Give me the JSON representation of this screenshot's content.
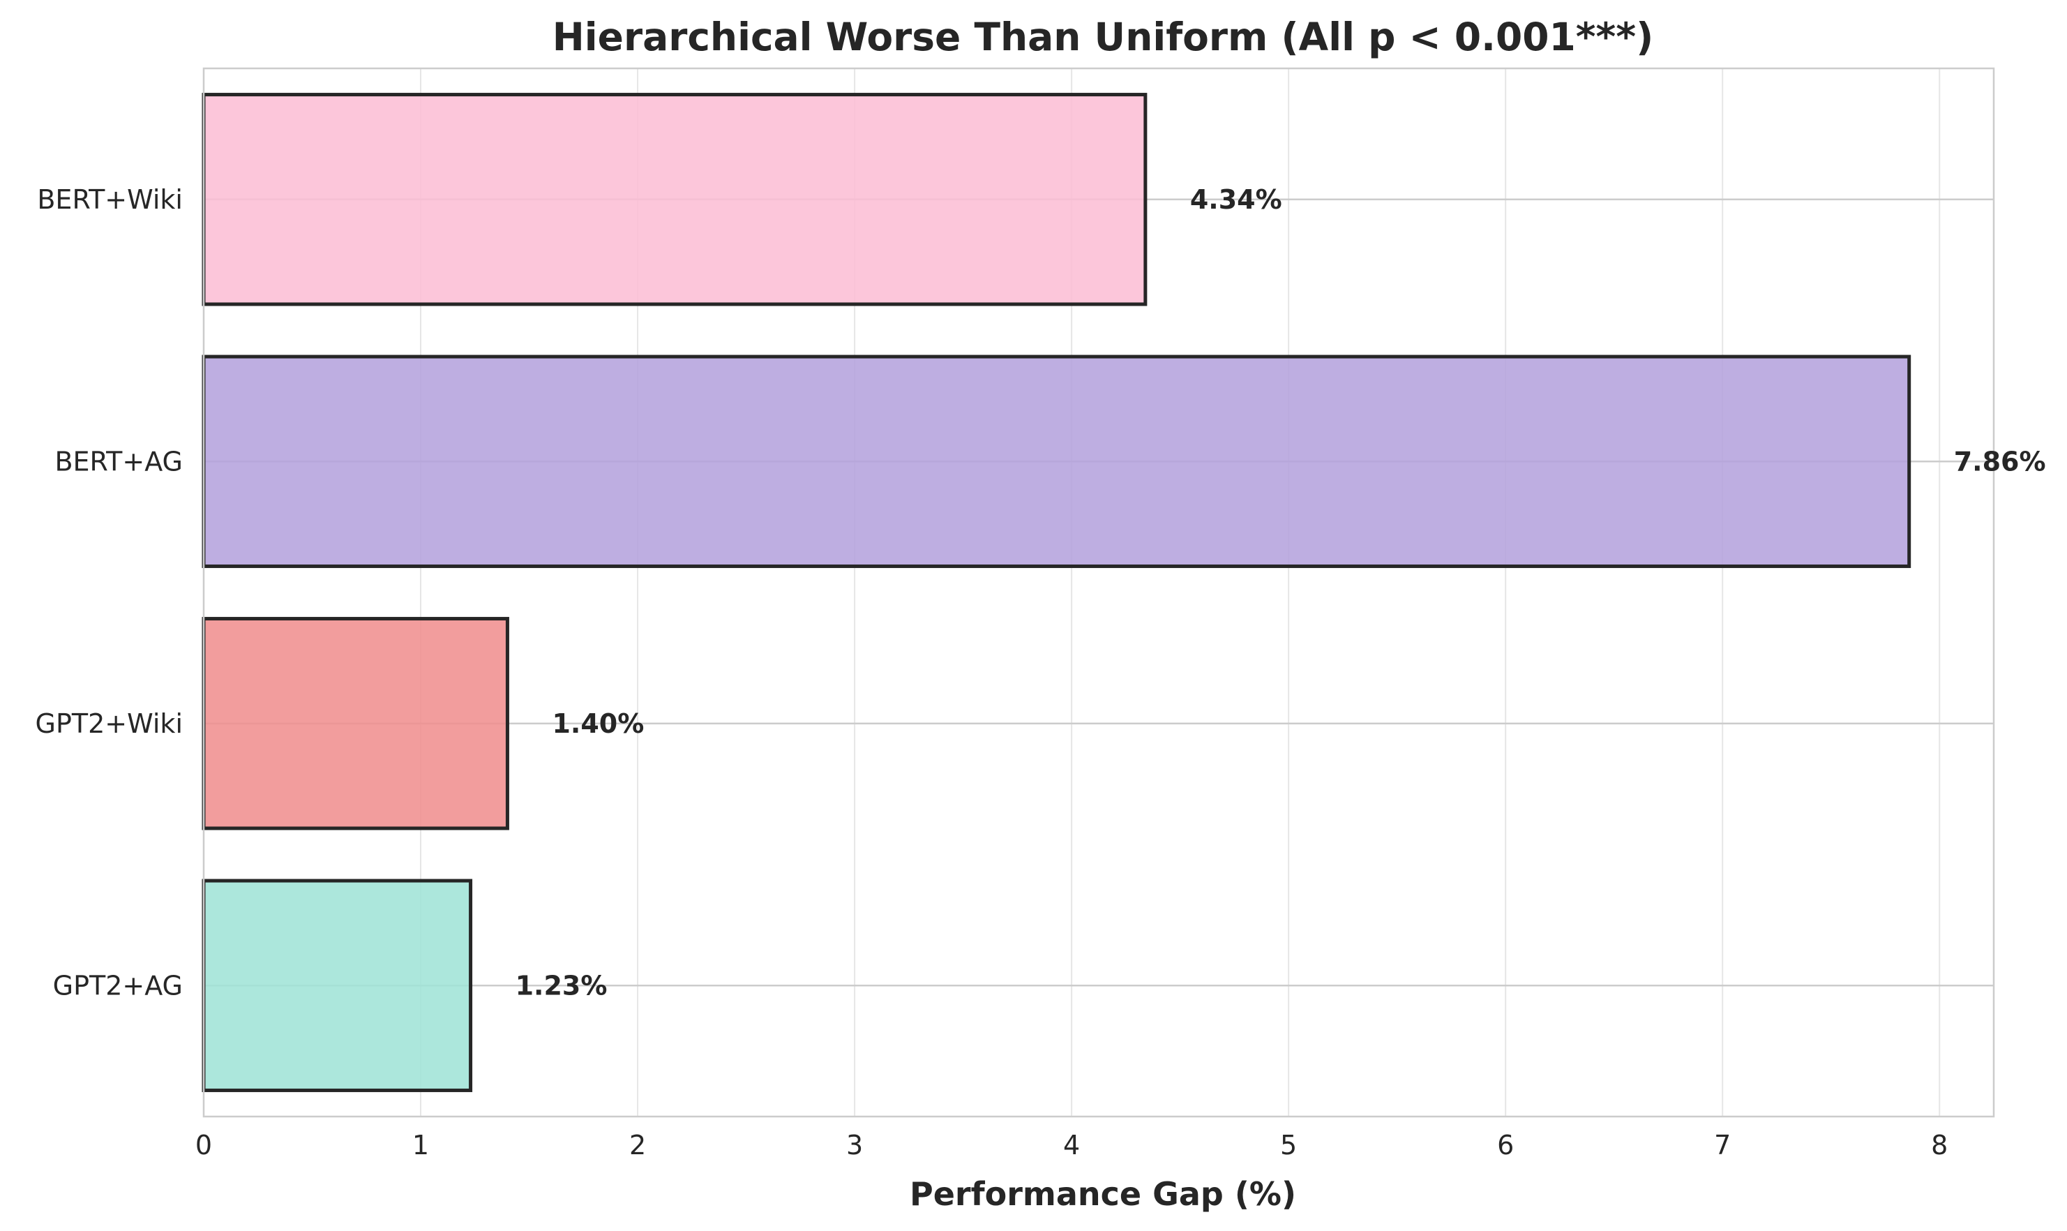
{
  "chart_data": {
    "type": "bar",
    "orientation": "horizontal",
    "title": "Hierarchical Worse Than Uniform (All p < 0.001***)",
    "xlabel": "Performance Gap (%)",
    "ylabel": "",
    "xlim": [
      0,
      8.25
    ],
    "xticks": [
      "0",
      "1",
      "2",
      "3",
      "4",
      "5",
      "6",
      "7",
      "8"
    ],
    "grid": true,
    "categories": [
      "BERT+Wiki",
      "BERT+AG",
      "GPT2+Wiki",
      "GPT2+AG"
    ],
    "values": [
      4.34,
      7.86,
      1.4,
      1.23
    ],
    "data_labels": [
      "4.34%",
      "7.86%",
      "1.40%",
      "1.23%"
    ],
    "colors": [
      "#fbbcd4",
      "#b3a0dc",
      "#f08c8c",
      "#9de3d6"
    ],
    "edge_color": "#262626"
  }
}
